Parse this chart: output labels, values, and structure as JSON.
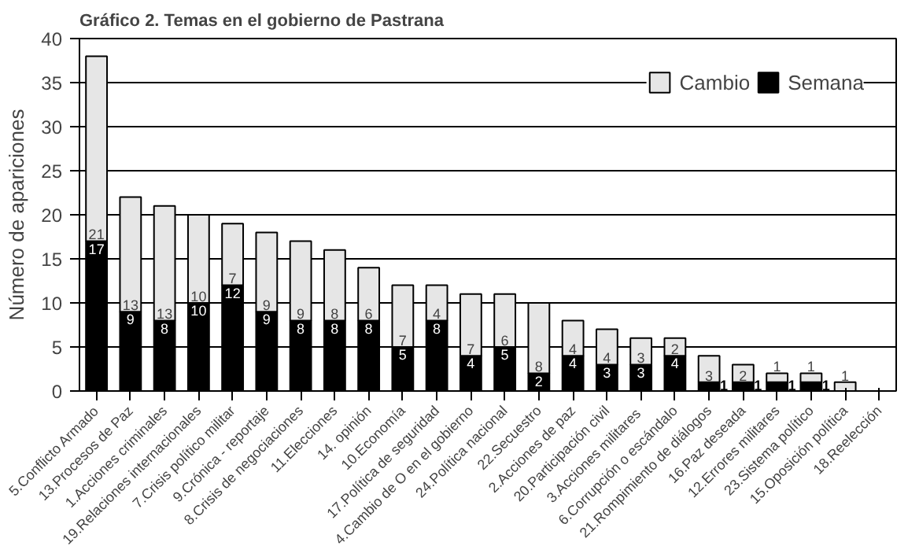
{
  "chart_data": {
    "type": "bar",
    "title": "Gráfico 2. Temas en el gobierno de Pastrana",
    "ylabel": "Número de apariciones",
    "categories": [
      "5.Conflicto Armado",
      "13.Procesos de Paz",
      "1.Acciones criminales",
      "19.Relaciones internacionales",
      "7.Crisis político militar",
      "9.Crónica - reportaje",
      "8.Crisis de negociaciones",
      "11.Elecciones",
      "14. opinión",
      "10.Economía",
      "17.Política de seguridad",
      "4.Cambio de O en el gobierno",
      "24.Política nacional",
      "22.Secuestro",
      "2.Acciones de paz",
      "20.Participación civil",
      "3.Acciones  militares",
      "6.Corrupción o escándalo",
      "21.Rompimiento de diálogos",
      "16.Paz deseada",
      "12.Errores militares",
      "23.Sistema político",
      "15.Oposición política",
      "18.Reelección"
    ],
    "stacked": true,
    "series": [
      {
        "name": "Semana",
        "color": "#000000",
        "values": [
          17,
          9,
          8,
          10,
          12,
          9,
          8,
          8,
          8,
          5,
          8,
          4,
          5,
          2,
          4,
          3,
          3,
          4,
          1,
          1,
          1,
          1,
          0,
          0
        ],
        "value_labels": [
          "17",
          "9",
          "8",
          "10",
          "12",
          "9",
          "8",
          "8",
          "8",
          "5",
          "8",
          "4",
          "5",
          "2",
          "4",
          "3",
          "3",
          "4",
          "1",
          "1",
          "1",
          "1",
          null,
          null
        ]
      },
      {
        "name": "Cambio",
        "color": "#e6e6e6",
        "values": [
          21,
          13,
          13,
          10,
          7,
          9,
          9,
          8,
          6,
          7,
          4,
          7,
          6,
          8,
          4,
          4,
          3,
          2,
          3,
          2,
          1,
          1,
          1,
          0
        ],
        "value_labels": [
          "21",
          "13",
          "13",
          "10",
          "7",
          "9",
          "9",
          "8",
          "6",
          "7",
          "4",
          "7",
          "6",
          "8",
          "4",
          "4",
          "3",
          "2",
          "3",
          "2",
          "1",
          "1",
          "1",
          null
        ]
      }
    ],
    "ylim": [
      0,
      40
    ],
    "yticks": [
      0,
      5,
      10,
      15,
      20,
      25,
      30,
      35,
      40
    ],
    "grid": "y",
    "legend": "top right"
  }
}
